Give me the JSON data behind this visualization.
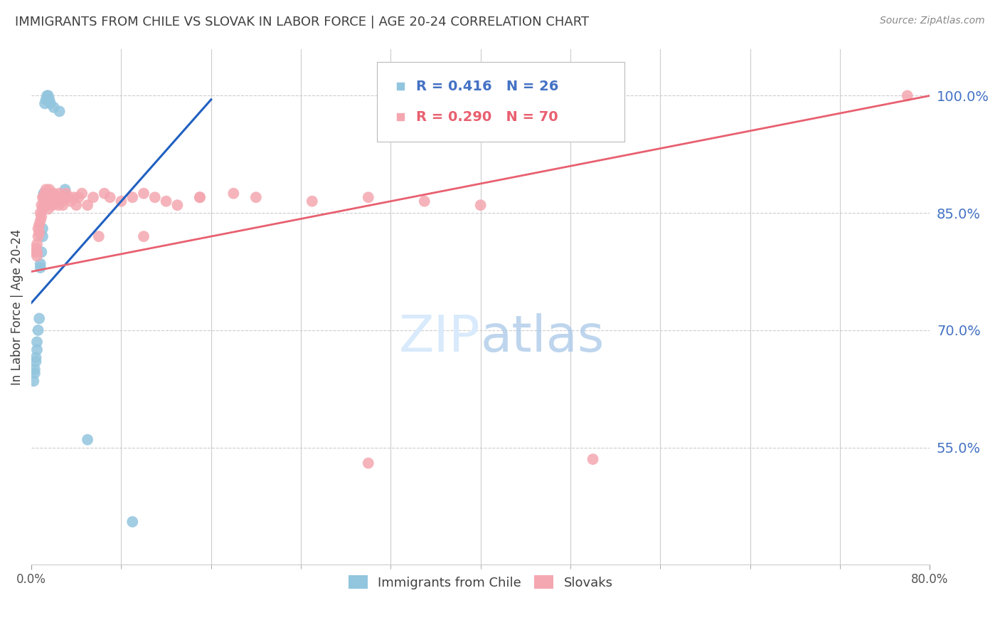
{
  "title": "IMMIGRANTS FROM CHILE VS SLOVAK IN LABOR FORCE | AGE 20-24 CORRELATION CHART",
  "source": "Source: ZipAtlas.com",
  "ylabel": "In Labor Force | Age 20-24",
  "xlim": [
    0.0,
    0.8
  ],
  "ylim": [
    0.4,
    1.06
  ],
  "xlabel_ticks": [
    0.0,
    0.8
  ],
  "xlabel_labels": [
    "0.0%",
    "80.0%"
  ],
  "xlabel_minor_ticks": [
    0.08,
    0.16,
    0.24,
    0.32,
    0.4,
    0.48,
    0.56,
    0.64,
    0.72
  ],
  "ylabel_vals": [
    0.55,
    0.7,
    0.85,
    1.0
  ],
  "chile_R": 0.416,
  "chile_N": 26,
  "slovak_R": 0.29,
  "slovak_N": 70,
  "chile_color": "#92C5DE",
  "slovak_color": "#F4A7B0",
  "chile_line_color": "#2060C0",
  "slovak_line_color": "#E86070",
  "grid_color": "#CCCCCC",
  "right_label_color": "#4472C4",
  "title_color": "#404040",
  "source_color": "#888888",
  "legend_r_color_chile": "#4472C4",
  "legend_r_color_slovak": "#E86070",
  "watermark_color": "#D8EAFB",
  "chile_x": [
    0.002,
    0.003,
    0.003,
    0.004,
    0.004,
    0.005,
    0.005,
    0.006,
    0.007,
    0.008,
    0.008,
    0.009,
    0.01,
    0.01,
    0.011,
    0.012,
    0.013,
    0.014,
    0.015,
    0.016,
    0.017,
    0.02,
    0.025,
    0.03,
    0.05,
    0.09
  ],
  "chile_y": [
    0.635,
    0.645,
    0.65,
    0.66,
    0.665,
    0.675,
    0.685,
    0.7,
    0.715,
    0.78,
    0.785,
    0.8,
    0.82,
    0.83,
    0.875,
    0.99,
    0.995,
    1.0,
    1.0,
    0.995,
    0.99,
    0.985,
    0.98,
    0.88,
    0.56,
    0.455
  ],
  "slovak_x": [
    0.003,
    0.004,
    0.005,
    0.005,
    0.005,
    0.006,
    0.006,
    0.007,
    0.007,
    0.008,
    0.008,
    0.009,
    0.009,
    0.01,
    0.01,
    0.011,
    0.011,
    0.012,
    0.012,
    0.013,
    0.014,
    0.014,
    0.015,
    0.015,
    0.016,
    0.016,
    0.017,
    0.018,
    0.018,
    0.019,
    0.02,
    0.021,
    0.022,
    0.023,
    0.024,
    0.025,
    0.026,
    0.027,
    0.028,
    0.03,
    0.031,
    0.033,
    0.035,
    0.038,
    0.04,
    0.042,
    0.045,
    0.05,
    0.055,
    0.06,
    0.065,
    0.07,
    0.08,
    0.09,
    0.1,
    0.11,
    0.12,
    0.13,
    0.15,
    0.18,
    0.2,
    0.25,
    0.3,
    0.35,
    0.4,
    0.1,
    0.15,
    0.3,
    0.5,
    0.78
  ],
  "slovak_y": [
    0.8,
    0.805,
    0.795,
    0.8,
    0.81,
    0.82,
    0.83,
    0.825,
    0.835,
    0.84,
    0.85,
    0.845,
    0.86,
    0.855,
    0.87,
    0.86,
    0.87,
    0.865,
    0.875,
    0.88,
    0.87,
    0.86,
    0.855,
    0.865,
    0.87,
    0.88,
    0.87,
    0.875,
    0.865,
    0.86,
    0.875,
    0.87,
    0.865,
    0.87,
    0.86,
    0.875,
    0.87,
    0.865,
    0.86,
    0.87,
    0.875,
    0.87,
    0.865,
    0.87,
    0.86,
    0.87,
    0.875,
    0.86,
    0.87,
    0.82,
    0.875,
    0.87,
    0.865,
    0.87,
    0.875,
    0.87,
    0.865,
    0.86,
    0.87,
    0.875,
    0.87,
    0.865,
    0.87,
    0.865,
    0.86,
    0.82,
    0.87,
    0.53,
    0.535,
    1.0
  ],
  "chile_trend_x": [
    0.0,
    0.16
  ],
  "chile_trend_y": [
    0.735,
    0.995
  ],
  "slovak_trend_x": [
    0.0,
    0.8
  ],
  "slovak_trend_y": [
    0.775,
    1.0
  ]
}
